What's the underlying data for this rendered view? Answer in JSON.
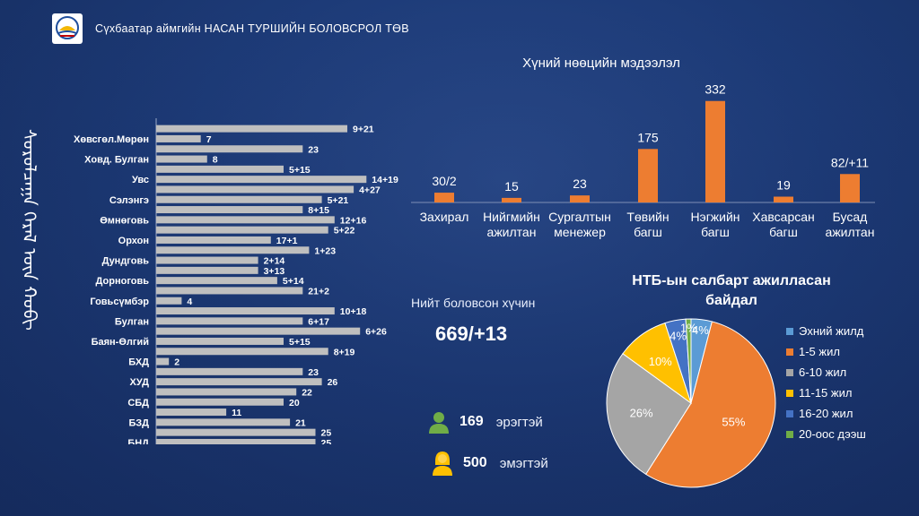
{
  "header": {
    "org_title": "Сүхбаатар аймгийн НАСАН ТУРШИЙН БОЛОВСРОЛ ТӨВ"
  },
  "side_script": "ᠰᠤᠷᠤᠯᠴᠠᠭᠠ ᠭᠡᠷᠡᠯ ᠦᠨ ᠬᠤᠪᠢ",
  "summary": {
    "total_label": "Нийт боловсон хүчин",
    "total_value": "669/+13",
    "male_count": "169",
    "male_label": "эрэгтэй",
    "female_count": "500",
    "female_label": "эмэгтэй"
  },
  "chart_data": [
    {
      "type": "bar",
      "orientation": "horizontal",
      "title": "",
      "label_color": "#ffffff",
      "bar_color": "#bfbfbf",
      "xlim": [
        0,
        35
      ],
      "bars": [
        {
          "label": "",
          "value": 30,
          "text": "9+21"
        },
        {
          "label": "Хөвсгөл.Мөрөн",
          "value": 7,
          "text": "7"
        },
        {
          "label": "",
          "value": 23,
          "text": "23"
        },
        {
          "label": "Ховд. Булган",
          "value": 8,
          "text": "8"
        },
        {
          "label": "",
          "value": 20,
          "text": "5+15"
        },
        {
          "label": "Увс",
          "value": 33,
          "text": "14+19"
        },
        {
          "label": "",
          "value": 31,
          "text": "4+27"
        },
        {
          "label": "Сэлэнгэ",
          "value": 26,
          "text": "5+21"
        },
        {
          "label": "",
          "value": 23,
          "text": "8+15"
        },
        {
          "label": "Өмнөговь",
          "value": 28,
          "text": "12+16"
        },
        {
          "label": "",
          "value": 27,
          "text": "5+22"
        },
        {
          "label": "Орхон",
          "value": 18,
          "text": "17+1"
        },
        {
          "label": "",
          "value": 24,
          "text": "1+23"
        },
        {
          "label": "Дундговь",
          "value": 16,
          "text": "2+14"
        },
        {
          "label": "",
          "value": 16,
          "text": "3+13"
        },
        {
          "label": "Дорноговь",
          "value": 19,
          "text": "5+14"
        },
        {
          "label": "",
          "value": 23,
          "text": "21+2"
        },
        {
          "label": "Говьсүмбэр",
          "value": 4,
          "text": "4"
        },
        {
          "label": "",
          "value": 28,
          "text": "10+18"
        },
        {
          "label": "Булган",
          "value": 23,
          "text": "6+17"
        },
        {
          "label": "",
          "value": 32,
          "text": "6+26"
        },
        {
          "label": "Баян-Өлгий",
          "value": 20,
          "text": "5+15"
        },
        {
          "label": "",
          "value": 27,
          "text": "8+19"
        },
        {
          "label": "БХД",
          "value": 2,
          "text": "2"
        },
        {
          "label": "",
          "value": 23,
          "text": "23"
        },
        {
          "label": "ХУД",
          "value": 26,
          "text": "26"
        },
        {
          "label": "",
          "value": 22,
          "text": "22"
        },
        {
          "label": "СБД",
          "value": 20,
          "text": "20"
        },
        {
          "label": "",
          "value": 11,
          "text": "11"
        },
        {
          "label": "БЗД",
          "value": 21,
          "text": "21"
        },
        {
          "label": "",
          "value": 25,
          "text": "25"
        },
        {
          "label": "БНД",
          "value": 25,
          "text": "25"
        }
      ]
    },
    {
      "type": "bar",
      "orientation": "vertical",
      "title": "Хүний нөөцийн мэдээлэл",
      "bar_color": "#ed7d31",
      "ylim": [
        0,
        340
      ],
      "categories": [
        "Захирал",
        "Нийгмийн ажилтан",
        "Сургалтын менежер",
        "Төвийн багш",
        "Нэгжийн багш",
        "Хавсарсан багш",
        "Бусад ажилтан"
      ],
      "category_lines": [
        [
          "Захирал"
        ],
        [
          "Нийгмийн",
          "ажилтан"
        ],
        [
          "Сургалтын",
          "менежер"
        ],
        [
          "Төвийн",
          "багш"
        ],
        [
          "Нэгжийн",
          "багш"
        ],
        [
          "Хавсарсан",
          "багш"
        ],
        [
          "Бусад",
          "ажилтан"
        ]
      ],
      "values": [
        32,
        15,
        23,
        175,
        332,
        19,
        93
      ],
      "value_labels": [
        "30/2",
        "15",
        "23",
        "175",
        "332",
        "19",
        "82/+11"
      ]
    },
    {
      "type": "pie",
      "title": "НТБ-ын салбарт ажилласан байдал",
      "title_lines": [
        "НТБ-ын салбарт ажилласан",
        "байдал"
      ],
      "slices": [
        {
          "label": "Эхний жилд",
          "value": 4,
          "color": "#5b9bd5",
          "text": "4%"
        },
        {
          "label": "1-5 жил",
          "value": 55,
          "color": "#ed7d31",
          "text": "55%"
        },
        {
          "label": "6-10 жил",
          "value": 26,
          "color": "#a5a5a5",
          "text": "26%"
        },
        {
          "label": "11-15 жил",
          "value": 10,
          "color": "#ffc000",
          "text": "10%"
        },
        {
          "label": "16-20 жил",
          "value": 4,
          "color": "#4472c4",
          "text": "4%"
        },
        {
          "label": "20-оос дээш",
          "value": 1,
          "color": "#70ad47",
          "text": "1%"
        }
      ]
    }
  ],
  "colors": {
    "male_icon": "#70ad47",
    "female_icon": "#ffc000"
  }
}
